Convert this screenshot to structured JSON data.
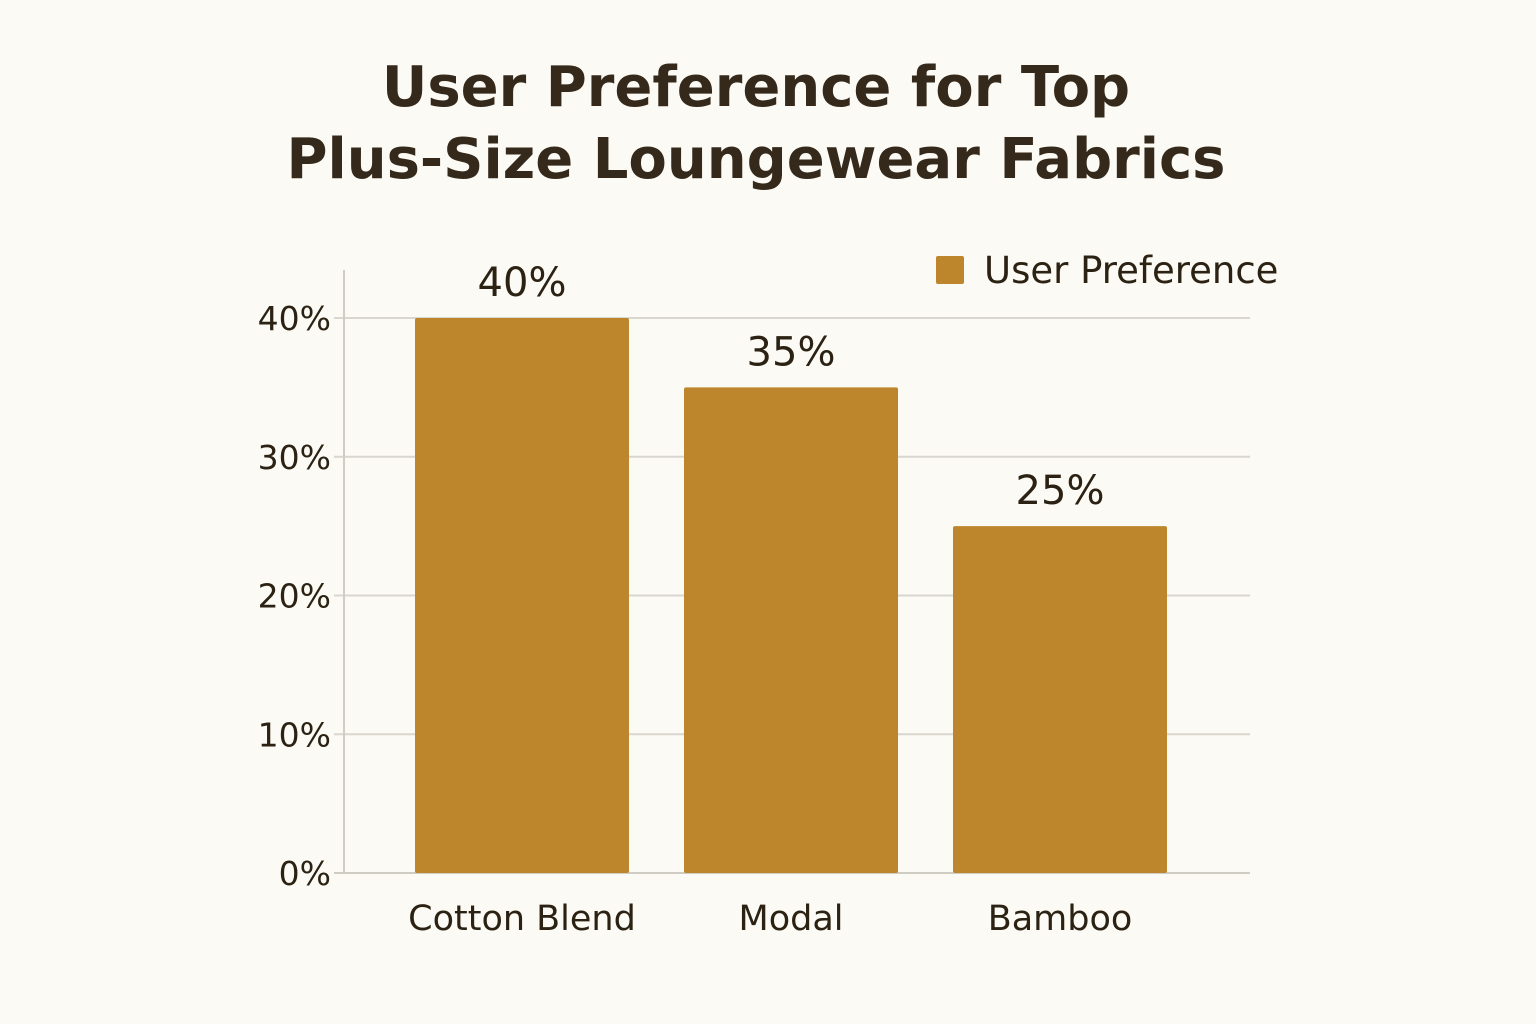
{
  "chart_data": {
    "type": "bar",
    "title": [
      "User Preference for Top",
      "Plus-Size Loungewear Fabrics"
    ],
    "categories": [
      "Cotton Blend",
      "Modal",
      "Bamboo"
    ],
    "series": [
      {
        "name": "User Preference",
        "values": [
          40,
          35,
          25
        ],
        "data_labels": [
          "40%",
          "35%",
          "25%"
        ],
        "color": "#bd862d"
      }
    ],
    "ylim": [
      0,
      40
    ],
    "yticks": [
      0,
      10,
      20,
      30,
      40
    ],
    "ytick_labels": [
      "0%",
      "10%",
      "20%",
      "30%",
      "40%"
    ],
    "grid": true,
    "legend_position": "top-right"
  },
  "colors": {
    "background": "#fcfaf4",
    "bar": "#bd862d",
    "grid": "#d9d6cf",
    "axis": "#cfccc4",
    "text": "#2b2214"
  }
}
